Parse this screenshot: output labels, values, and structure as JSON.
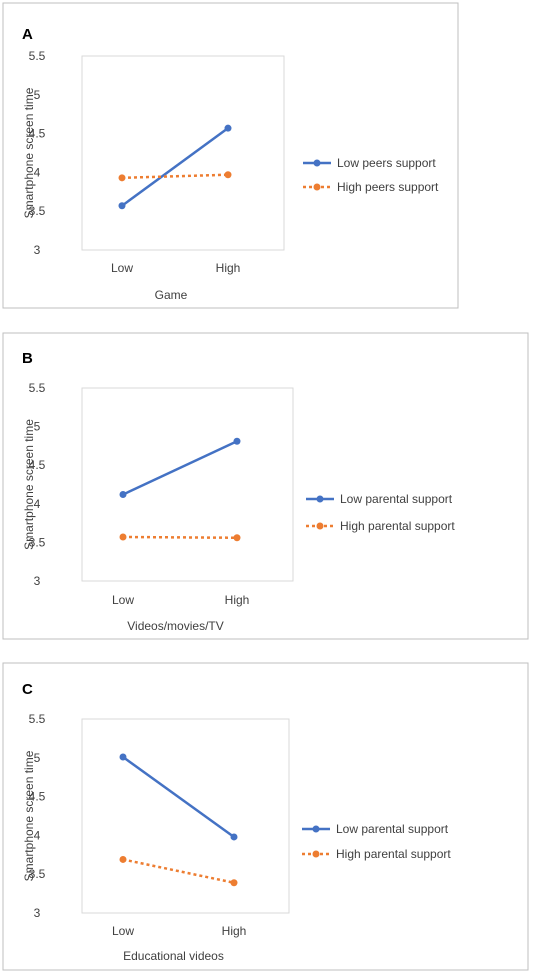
{
  "colors": {
    "low_series": "#4472C4",
    "high_series": "#ED7D31",
    "frame": "#BFBFBF",
    "plot_border": "#D9D9D9",
    "text": "#404040"
  },
  "panels": [
    {
      "letter": "A",
      "legend": [
        "Low peers support",
        "High peers support"
      ]
    },
    {
      "letter": "B",
      "legend": [
        "Low parental support",
        "High parental support"
      ]
    },
    {
      "letter": "C",
      "legend": [
        "Low parental support",
        "High parental support"
      ]
    }
  ],
  "chart_data": [
    {
      "type": "line",
      "title": "A",
      "xlabel": "Game",
      "ylabel": "Smartphone screen time",
      "categories": [
        "Low",
        "High"
      ],
      "ylim": [
        3,
        5.5
      ],
      "yticks": [
        "3",
        "3.5",
        "4",
        "4.5",
        "5",
        "5.5"
      ],
      "series": [
        {
          "name": "Low peers support",
          "values": [
            3.57,
            4.57
          ],
          "style": "solid"
        },
        {
          "name": "High peers support",
          "values": [
            3.93,
            3.97
          ],
          "style": "dotted"
        }
      ],
      "legend": "right"
    },
    {
      "type": "line",
      "title": "B",
      "xlabel": "Videos/movies/TV",
      "ylabel": "Smartphone screen time",
      "categories": [
        "Low",
        "High"
      ],
      "ylim": [
        3,
        5.5
      ],
      "yticks": [
        "3",
        "3.5",
        "4",
        "4.5",
        "5",
        "5.5"
      ],
      "series": [
        {
          "name": "Low parental support",
          "values": [
            4.12,
            4.81
          ],
          "style": "solid"
        },
        {
          "name": "High parental support",
          "values": [
            3.57,
            3.56
          ],
          "style": "dotted"
        }
      ],
      "legend": "right"
    },
    {
      "type": "line",
      "title": "C",
      "xlabel": "Educational videos",
      "ylabel": "Smartphone screen time",
      "categories": [
        "Low",
        "High"
      ],
      "ylim": [
        3,
        5.5
      ],
      "yticks": [
        "3",
        "3.5",
        "4",
        "4.5",
        "5",
        "5.5"
      ],
      "series": [
        {
          "name": "Low parental support",
          "values": [
            5.01,
            3.98
          ],
          "style": "solid"
        },
        {
          "name": "High parental support",
          "values": [
            3.69,
            3.39
          ],
          "style": "dotted"
        }
      ],
      "legend": "right"
    }
  ]
}
